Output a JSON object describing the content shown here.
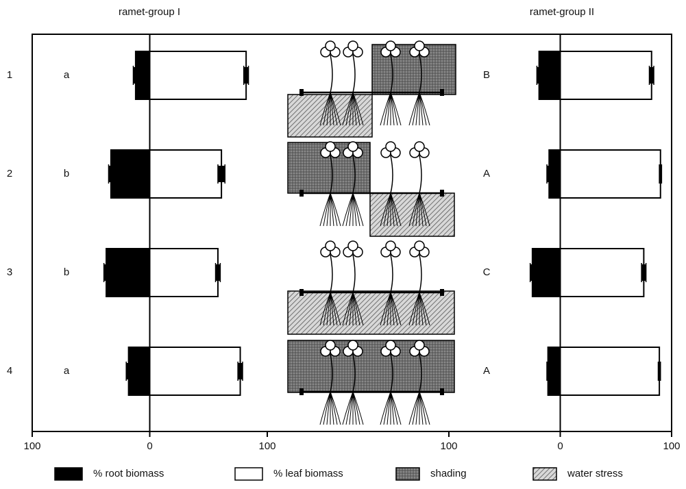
{
  "chart_data": [
    {
      "type": "bar",
      "title": "ramet-group I",
      "categories": [
        "1",
        "2",
        "3",
        "4"
      ],
      "annotations": [
        "a",
        "b",
        "b",
        "a"
      ],
      "series": [
        {
          "name": "% root biomass",
          "color": "#000000",
          "values": [
            12,
            33,
            37,
            18
          ],
          "errors": [
            2,
            2,
            2,
            2
          ]
        },
        {
          "name": "% leaf biomass",
          "color": "#ffffff",
          "values": [
            82,
            61,
            58,
            77
          ],
          "errors": [
            2,
            3,
            2,
            2
          ]
        }
      ],
      "xlim": [
        -100,
        100
      ],
      "xticks": [
        {
          "value": -100,
          "label": "100"
        },
        0,
        100
      ]
    },
    {
      "type": "bar",
      "title": "ramet-group II",
      "annotations": [
        "B",
        "A",
        "C",
        "A"
      ],
      "series": [
        {
          "name": "% root biomass",
          "color": "#000000",
          "values": [
            19,
            10,
            25,
            11
          ],
          "errors": [
            2,
            2,
            2,
            1
          ]
        },
        {
          "name": "% leaf biomass",
          "color": "#ffffff",
          "values": [
            82,
            90,
            75,
            89
          ],
          "errors": [
            2,
            1,
            2,
            1
          ]
        }
      ],
      "xlim": [
        -100,
        100
      ],
      "xticks": [
        {
          "value": -100,
          "label": "100"
        },
        0,
        100
      ]
    }
  ],
  "treatment_legend": [
    "shading",
    "water stress"
  ]
}
